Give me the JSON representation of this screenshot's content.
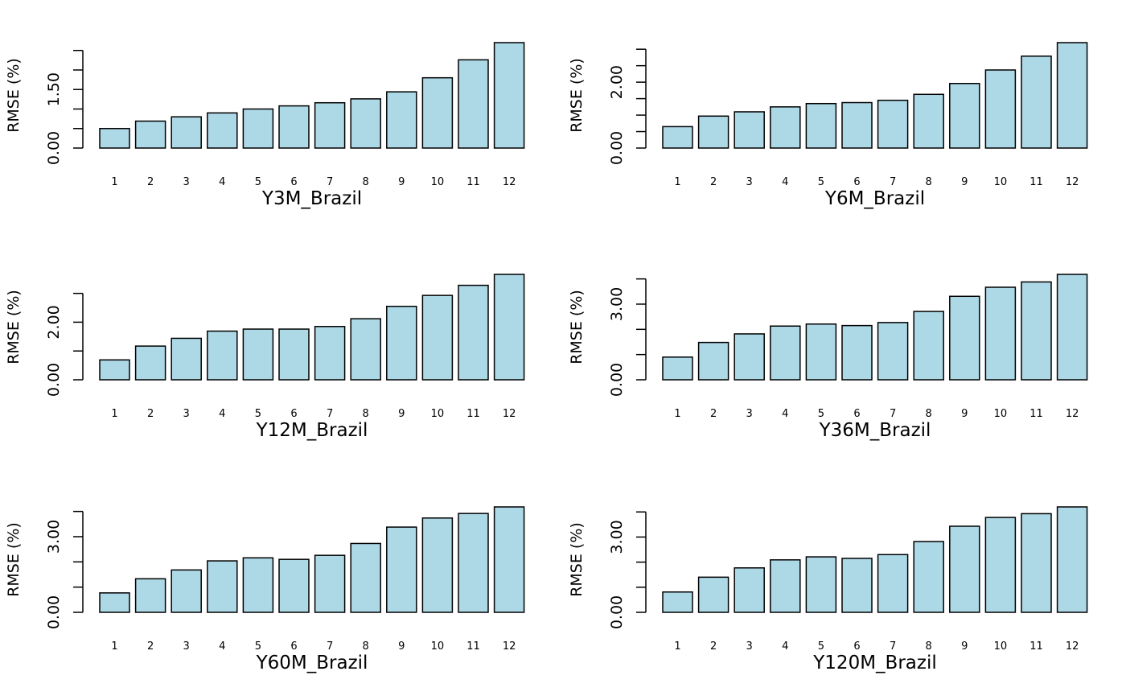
{
  "chart_data": [
    {
      "type": "bar",
      "xlabel": "Y3M_Brazil",
      "ylabel": "RMSE (%)",
      "categories": [
        "1",
        "2",
        "3",
        "4",
        "5",
        "6",
        "7",
        "8",
        "9",
        "10",
        "11",
        "12"
      ],
      "values": [
        0.5,
        0.69,
        0.8,
        0.9,
        1.0,
        1.08,
        1.16,
        1.26,
        1.44,
        1.8,
        2.26,
        2.7
      ],
      "ylim": [
        0,
        2.7
      ],
      "yticks": [
        0,
        0.5,
        1.0,
        1.5,
        2.0,
        2.5
      ],
      "ytick_labels": [
        "0.00",
        "",
        "",
        "1.50",
        "",
        ""
      ],
      "bar_color": "#add8e6"
    },
    {
      "type": "bar",
      "xlabel": "Y6M_Brazil",
      "ylabel": "RMSE (%)",
      "categories": [
        "1",
        "2",
        "3",
        "4",
        "5",
        "6",
        "7",
        "8",
        "9",
        "10",
        "11",
        "12"
      ],
      "values": [
        0.65,
        0.97,
        1.1,
        1.25,
        1.35,
        1.38,
        1.45,
        1.63,
        1.96,
        2.37,
        2.79,
        3.2
      ],
      "ylim": [
        0,
        3.2
      ],
      "yticks": [
        0,
        0.5,
        1.0,
        1.5,
        2.0,
        2.5,
        3.0
      ],
      "ytick_labels": [
        "0.00",
        "",
        "",
        "",
        "2.00",
        "",
        ""
      ],
      "bar_color": "#add8e6"
    },
    {
      "type": "bar",
      "xlabel": "Y12M_Brazil",
      "ylabel": "RMSE (%)",
      "categories": [
        "1",
        "2",
        "3",
        "4",
        "5",
        "6",
        "7",
        "8",
        "9",
        "10",
        "11",
        "12"
      ],
      "values": [
        0.69,
        1.17,
        1.44,
        1.69,
        1.76,
        1.76,
        1.85,
        2.12,
        2.55,
        2.93,
        3.28,
        3.66
      ],
      "ylim": [
        0,
        3.66
      ],
      "yticks": [
        0,
        1.0,
        2.0,
        3.0
      ],
      "ytick_labels": [
        "0.00",
        "",
        "2.00",
        ""
      ],
      "bar_color": "#add8e6"
    },
    {
      "type": "bar",
      "xlabel": "Y36M_Brazil",
      "ylabel": "RMSE (%)",
      "categories": [
        "1",
        "2",
        "3",
        "4",
        "5",
        "6",
        "7",
        "8",
        "9",
        "10",
        "11",
        "12"
      ],
      "values": [
        0.9,
        1.48,
        1.82,
        2.13,
        2.21,
        2.15,
        2.27,
        2.71,
        3.31,
        3.67,
        3.88,
        4.18
      ],
      "ylim": [
        0,
        4.18
      ],
      "yticks": [
        0,
        1.0,
        2.0,
        3.0,
        4.0
      ],
      "ytick_labels": [
        "0.00",
        "",
        "",
        "3.00",
        ""
      ],
      "bar_color": "#add8e6"
    },
    {
      "type": "bar",
      "xlabel": "Y60M_Brazil",
      "ylabel": "RMSE (%)",
      "categories": [
        "1",
        "2",
        "3",
        "4",
        "5",
        "6",
        "7",
        "8",
        "9",
        "10",
        "11",
        "12"
      ],
      "values": [
        0.77,
        1.33,
        1.68,
        2.04,
        2.16,
        2.1,
        2.26,
        2.73,
        3.38,
        3.74,
        3.92,
        4.18
      ],
      "ylim": [
        0,
        4.18
      ],
      "yticks": [
        0,
        1.0,
        2.0,
        3.0,
        4.0
      ],
      "ytick_labels": [
        "0.00",
        "",
        "",
        "3.00",
        ""
      ],
      "bar_color": "#add8e6"
    },
    {
      "type": "bar",
      "xlabel": "Y120M_Brazil",
      "ylabel": "RMSE (%)",
      "categories": [
        "1",
        "2",
        "3",
        "4",
        "5",
        "6",
        "7",
        "8",
        "9",
        "10",
        "11",
        "12"
      ],
      "values": [
        0.81,
        1.4,
        1.77,
        2.09,
        2.21,
        2.15,
        2.3,
        2.82,
        3.43,
        3.78,
        3.93,
        4.2
      ],
      "ylim": [
        0,
        4.2
      ],
      "yticks": [
        0,
        1.0,
        2.0,
        3.0,
        4.0
      ],
      "ytick_labels": [
        "0.00",
        "",
        "",
        "3.00",
        ""
      ],
      "bar_color": "#add8e6"
    }
  ]
}
